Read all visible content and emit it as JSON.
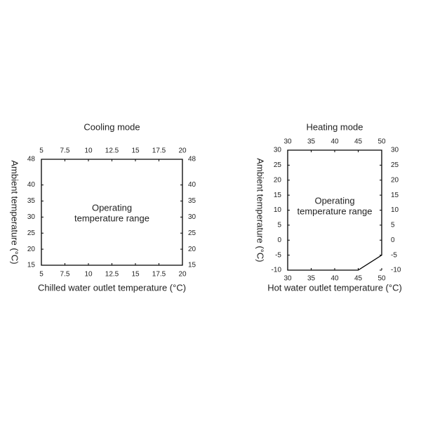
{
  "chart_data": [
    {
      "type": "polygon",
      "title": "Cooling mode",
      "x_label": "Chilled water outlet temperature (°C)",
      "y_label": "Ambient temperature (°C)",
      "annotation": [
        "Operating",
        "temperature range"
      ],
      "x": [
        5,
        5,
        20,
        20
      ],
      "y": [
        15,
        48,
        48,
        15
      ],
      "xlim": [
        5,
        20
      ],
      "ylim": [
        15,
        48
      ],
      "xticks": [
        5,
        7.5,
        10,
        12.5,
        15,
        17.5,
        20
      ],
      "yticks": [
        15,
        20,
        25,
        30,
        35,
        40,
        48
      ],
      "color": "#000000"
    },
    {
      "type": "polygon",
      "title": "Heating mode",
      "x_label": "Hot water outlet temperature (°C)",
      "y_label": "Ambient temperature (°C)",
      "annotation": [
        "Operating",
        "temperature range"
      ],
      "x": [
        30,
        30,
        50,
        50,
        45
      ],
      "y": [
        -10,
        30,
        30,
        -5,
        -10
      ],
      "xlim": [
        30,
        50
      ],
      "ylim": [
        -10,
        30
      ],
      "xticks": [
        30,
        35,
        40,
        45,
        50
      ],
      "yticks": [
        -10,
        -5,
        0,
        5,
        10,
        15,
        20,
        25,
        30
      ],
      "color": "#000000"
    }
  ]
}
